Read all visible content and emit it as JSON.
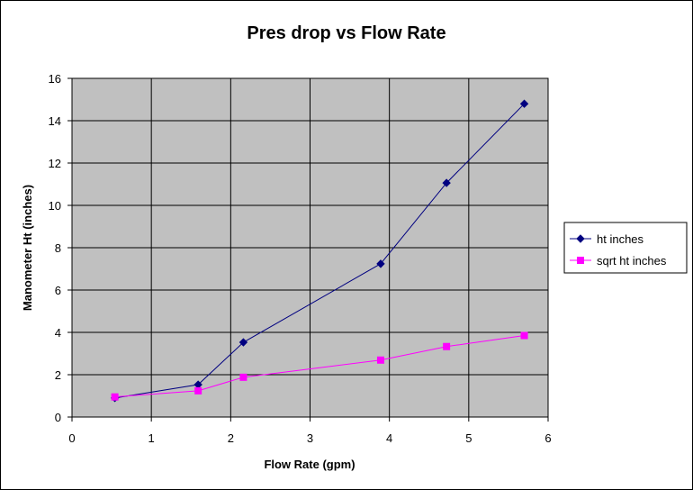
{
  "chart_data": {
    "type": "scatter",
    "title": "Pres drop vs Flow Rate",
    "xlabel": "Flow Rate (gpm)",
    "ylabel": "Manometer Ht (inches)",
    "xlim": [
      0,
      6
    ],
    "ylim": [
      0,
      16
    ],
    "xticks": [
      0,
      1,
      2,
      3,
      4,
      5,
      6
    ],
    "yticks": [
      0,
      2,
      4,
      6,
      8,
      10,
      12,
      14,
      16
    ],
    "grid": true,
    "legend_position": "right",
    "plot_background": "#C0C0C0",
    "series": [
      {
        "name": "ht inches",
        "color": "#000080",
        "marker": "diamond",
        "x": [
          0.54,
          1.59,
          2.16,
          3.89,
          4.72,
          5.7
        ],
        "y": [
          0.9,
          1.53,
          3.53,
          7.24,
          11.06,
          14.8
        ]
      },
      {
        "name": "sqrt ht inches",
        "color": "#FF00FF",
        "marker": "square",
        "x": [
          0.54,
          1.59,
          2.16,
          3.89,
          4.72,
          5.7
        ],
        "y": [
          0.95,
          1.24,
          1.88,
          2.69,
          3.33,
          3.85
        ]
      }
    ]
  }
}
